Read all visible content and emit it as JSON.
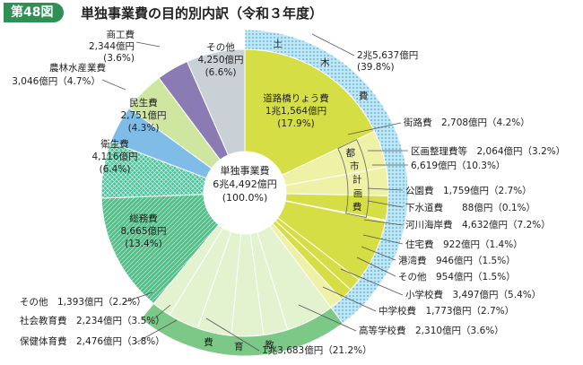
{
  "header": {
    "figure_no": "第48図",
    "title": "単独事業費の目的別内訳（令和３年度）"
  },
  "center": {
    "line1": "単独事業費",
    "line2": "6兆4,492億円",
    "line3": "(100.0%)"
  },
  "colors": {
    "doboku": "#d6de45",
    "doboku_light": "#eef1a6",
    "kyoiku": "#c7e6a8",
    "kyoiku_light": "#e3f3cf",
    "somu": "#4fbf87",
    "eisei": "#46c49b",
    "minsei": "#7fbde8",
    "norin": "#cfe6a0",
    "shoko": "#8a7bb5",
    "sonota": "#c9d1d6",
    "outer_doboku": "#9ad7ee",
    "outer_kyoiku": "#7bc887"
  },
  "ring_labels": {
    "doboku": [
      "土",
      "木",
      "費"
    ],
    "toshi": [
      "都",
      "市",
      "計",
      "画",
      "費"
    ],
    "kyoiku": [
      "教",
      "育",
      "費"
    ]
  },
  "labels": {
    "doboku_total": [
      "2兆5,637億円",
      "(39.8%)"
    ],
    "road": [
      "道路橋りょう費",
      "1兆1,564億円",
      "(17.9%)"
    ],
    "gaiso": "街路費　2,708億円（4.2%）",
    "kukaku": "区画整理費等　2,064億円（3.2%）",
    "toshi_total": "6,619億円（10.3%）",
    "koen": "公園費　1,759億円（2.7%）",
    "gesui": "下水道費　　88億円（0.1%）",
    "kasen": "河川海岸費　4,632億円（7.2%）",
    "jutaku": "住宅費　922億円（1.4%）",
    "kowan": "港湾費　946億円（1.5%）",
    "doboku_other": "その他　954億円（1.5%）",
    "shogakko": "小学校費　3,497億円（5.4%）",
    "chugakko": "中学校費　1,773億円（2.7%）",
    "kotogakko": "高等学校費　2,310億円（3.6%）",
    "kyoiku_total": "1兆3,683億円（21.2%）",
    "hoken": "保健体育費　2,476億円（3.8%）",
    "shakai": "社会教育費　2,234億円（3.5%）",
    "kyoiku_other": "その他　1,393億円（2.2%）",
    "somu": [
      "総務費",
      "8,665億円",
      "(13.4%)"
    ],
    "eisei": [
      "衛生費",
      "4,116億円",
      "(6.4%)"
    ],
    "minsei": [
      "民生費",
      "2,751億円",
      "(4.3%)"
    ],
    "norin": [
      "農林水産業費",
      "3,046億円（4.7%）"
    ],
    "shoko": [
      "商工費",
      "2,344億円",
      "(3.6%)"
    ],
    "sonota": [
      "その他",
      "4,250億円",
      "(6.6%)"
    ]
  },
  "chart_data": {
    "type": "pie",
    "title": "単独事業費の目的別内訳（令和３年度）",
    "total": "6兆4,492億円",
    "unit": "億円",
    "inner_ring": [
      {
        "name": "道路橋りょう費",
        "value": 11564,
        "pct": 17.9,
        "group": "土木費"
      },
      {
        "name": "街路費",
        "value": 2708,
        "pct": 4.2,
        "group": "土木費"
      },
      {
        "name": "区画整理費等",
        "value": 2064,
        "pct": 3.2,
        "group": "土木費"
      },
      {
        "name": "公園費",
        "value": 1759,
        "pct": 2.7,
        "group": "土木費"
      },
      {
        "name": "下水道費",
        "value": 88,
        "pct": 0.1,
        "group": "土木費"
      },
      {
        "name": "河川海岸費",
        "value": 4632,
        "pct": 7.2,
        "group": "土木費"
      },
      {
        "name": "住宅費",
        "value": 922,
        "pct": 1.4,
        "group": "土木費"
      },
      {
        "name": "港湾費",
        "value": 946,
        "pct": 1.5,
        "group": "土木費"
      },
      {
        "name": "その他",
        "value": 954,
        "pct": 1.5,
        "group": "土木費"
      },
      {
        "name": "小学校費",
        "value": 3497,
        "pct": 5.4,
        "group": "教育費"
      },
      {
        "name": "中学校費",
        "value": 1773,
        "pct": 2.7,
        "group": "教育費"
      },
      {
        "name": "高等学校費",
        "value": 2310,
        "pct": 3.6,
        "group": "教育費"
      },
      {
        "name": "保健体育費",
        "value": 2476,
        "pct": 3.8,
        "group": "教育費"
      },
      {
        "name": "社会教育費",
        "value": 2234,
        "pct": 3.5,
        "group": "教育費"
      },
      {
        "name": "その他",
        "value": 1393,
        "pct": 2.2,
        "group": "教育費"
      },
      {
        "name": "総務費",
        "value": 8665,
        "pct": 13.4
      },
      {
        "name": "衛生費",
        "value": 4116,
        "pct": 6.4
      },
      {
        "name": "民生費",
        "value": 2751,
        "pct": 4.3
      },
      {
        "name": "農林水産業費",
        "value": 3046,
        "pct": 4.7
      },
      {
        "name": "商工費",
        "value": 2344,
        "pct": 3.6
      },
      {
        "name": "その他",
        "value": 4250,
        "pct": 6.6
      }
    ],
    "groups": [
      {
        "name": "土木費",
        "value": 25637,
        "pct": 39.8
      },
      {
        "name": "教育費",
        "value": 13683,
        "pct": 21.2
      },
      {
        "name": "都市計画費",
        "value": 6619,
        "pct": 10.3
      }
    ]
  }
}
